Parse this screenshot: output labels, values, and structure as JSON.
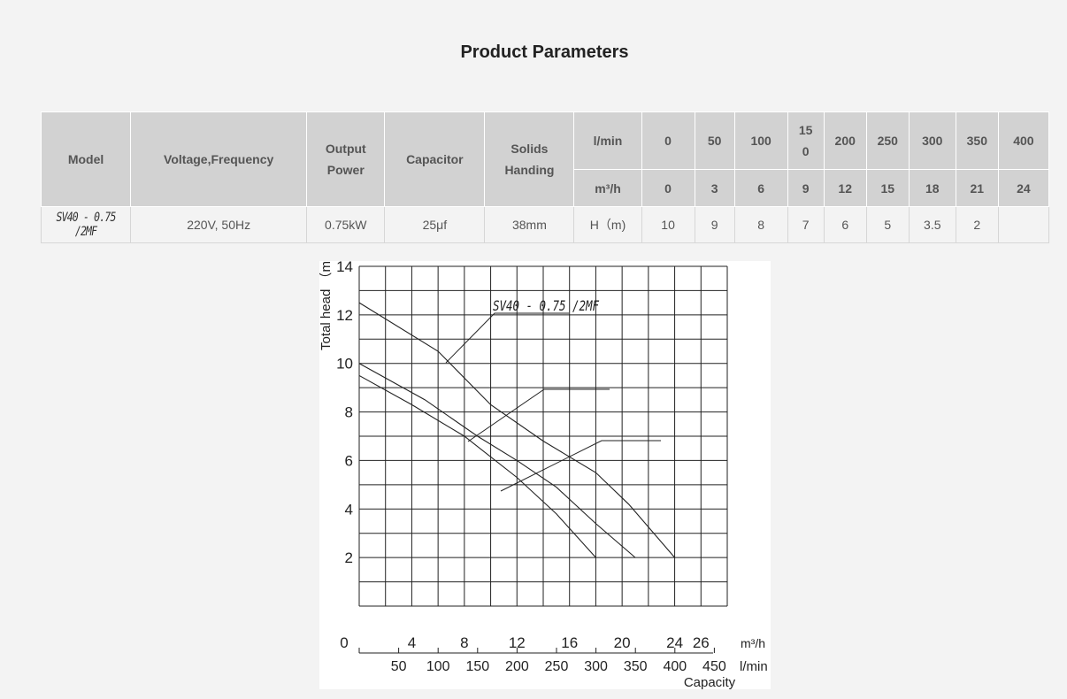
{
  "page": {
    "title": "Product Parameters"
  },
  "table": {
    "headers": {
      "model": "Model",
      "voltage": "Voltage,Frequency",
      "output_power": "Output Power",
      "capacitor": "Capacitor",
      "solids": "Solids Handing",
      "lmin": "l/min",
      "m3h": "m³/h"
    },
    "flow_lmin": [
      "0",
      "50",
      "100",
      "15 0",
      "200",
      "250",
      "300",
      "350",
      "400"
    ],
    "flow_m3h": [
      "0",
      "3",
      "6",
      "9",
      "12",
      "15",
      "18",
      "21",
      "24"
    ],
    "row": {
      "model": "SV40 - 0.75 /2MF",
      "voltage": "220V, 50Hz",
      "output_power": "0.75kW",
      "capacitor": "25μf",
      "solids": "38mm",
      "head_label": "H（m)",
      "heads": [
        "10",
        "9",
        "8",
        "7",
        "6",
        "5",
        "3.5",
        "2",
        ""
      ]
    }
  },
  "chart_data": {
    "type": "line",
    "ylabel": "Total head （m)",
    "xlabel": "Capacity",
    "x_unit_primary": "m³/h",
    "x_unit_secondary": "l/min",
    "xlim": [
      0,
      28
    ],
    "ylim": [
      0,
      14
    ],
    "x_ticks": [
      "0",
      "4",
      "8",
      "12",
      "16",
      "20",
      "24",
      "26"
    ],
    "y_ticks": [
      "2",
      "4",
      "6",
      "8",
      "10",
      "12",
      "14"
    ],
    "x2_ticks": [
      "50",
      "100",
      "150",
      "200",
      "250",
      "300",
      "350",
      "400",
      "450"
    ],
    "annotation_label": "SV40 - 0.75 /2MF",
    "series": [
      {
        "x": [
          0,
          6,
          10,
          14,
          18,
          20.5,
          24
        ],
        "y": [
          12.5,
          10.5,
          8.3,
          6.8,
          5.5,
          4.2,
          2
        ]
      },
      {
        "x": [
          0,
          5,
          9,
          12,
          15,
          18,
          21
        ],
        "y": [
          10,
          8.5,
          7.0,
          6.0,
          4.9,
          3.4,
          2
        ]
      },
      {
        "x": [
          0,
          4,
          8,
          12,
          15,
          18
        ],
        "y": [
          9.5,
          8.3,
          7.0,
          5.3,
          3.8,
          2
        ]
      }
    ]
  }
}
